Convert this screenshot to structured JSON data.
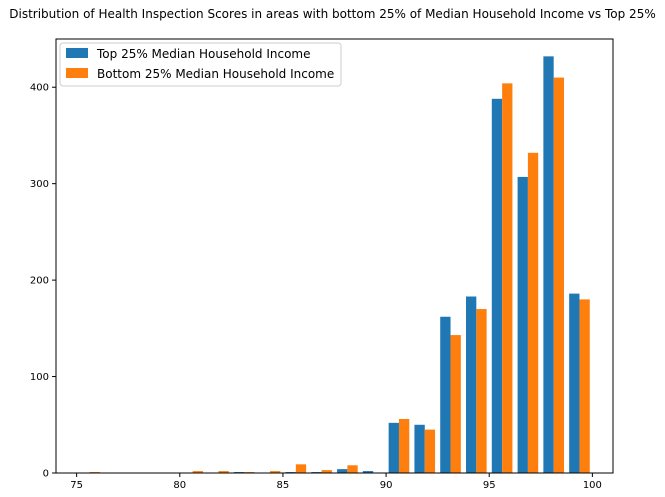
{
  "chart_data": {
    "type": "bar",
    "title": "Distribution of Health Inspection Scores in areas with bottom 25% of Median Household Income vs Top 25%",
    "xlabel": "",
    "ylabel": "",
    "xlim": [
      74,
      101
    ],
    "ylim": [
      0,
      450
    ],
    "xticks": [
      75,
      80,
      85,
      90,
      95,
      100
    ],
    "yticks": [
      0,
      100,
      200,
      300,
      400
    ],
    "grid": false,
    "legend_position": "top-left",
    "bin_width": 1.25,
    "bin_edges": [
      75.0,
      76.25,
      77.5,
      78.75,
      80.0,
      81.25,
      82.5,
      83.75,
      85.0,
      86.25,
      87.5,
      88.75,
      90.0,
      91.25,
      92.5,
      93.75,
      95.0,
      96.25,
      97.5,
      98.75,
      100.0
    ],
    "series": [
      {
        "name": "Top 25% Median Household Income",
        "color": "#1f77b4",
        "values": [
          0,
          0,
          0,
          0,
          0,
          0,
          1,
          0,
          1,
          1,
          4,
          2,
          52,
          50,
          162,
          183,
          388,
          307,
          432,
          186
        ]
      },
      {
        "name": "Bottom 25% Median Household Income",
        "color": "#ff7f0e",
        "values": [
          1,
          0,
          0,
          0,
          2,
          2,
          1,
          2,
          9,
          3,
          8,
          0,
          56,
          45,
          143,
          170,
          404,
          332,
          410,
          180
        ]
      }
    ]
  }
}
